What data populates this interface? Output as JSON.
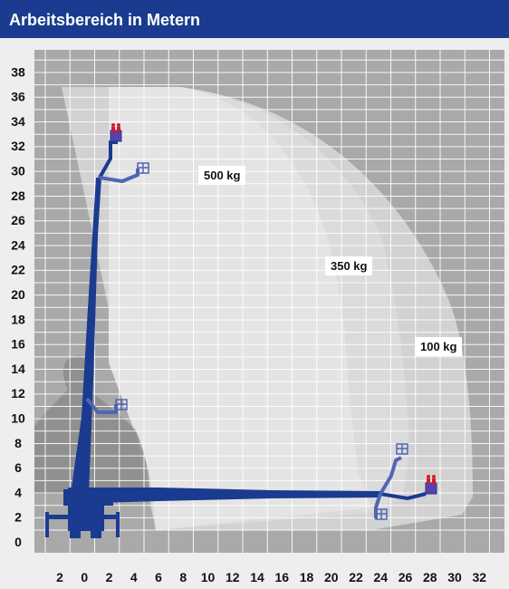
{
  "title": "Arbeitsbereich in Metern",
  "colors": {
    "header": "#1a3b8f",
    "grid_bg": "#a9a9a9",
    "grid_line": "#ffffff",
    "boom": "#1a3b8f",
    "boom_light": "#5065b5"
  },
  "chart_data": {
    "type": "diagram",
    "x_ticks": [
      "2",
      "0",
      "2",
      "4",
      "6",
      "8",
      "10",
      "12",
      "14",
      "16",
      "18",
      "20",
      "22",
      "24",
      "26",
      "28",
      "30",
      "32"
    ],
    "y_ticks": [
      "0",
      "2",
      "4",
      "6",
      "8",
      "10",
      "12",
      "14",
      "16",
      "18",
      "20",
      "22",
      "24",
      "26",
      "28",
      "30",
      "32",
      "34",
      "36",
      "38"
    ],
    "load_zones": [
      {
        "label": "500 kg"
      },
      {
        "label": "350 kg"
      },
      {
        "label": "100 kg"
      }
    ],
    "max_height_m": 32.5,
    "max_outreach_m": 28
  }
}
